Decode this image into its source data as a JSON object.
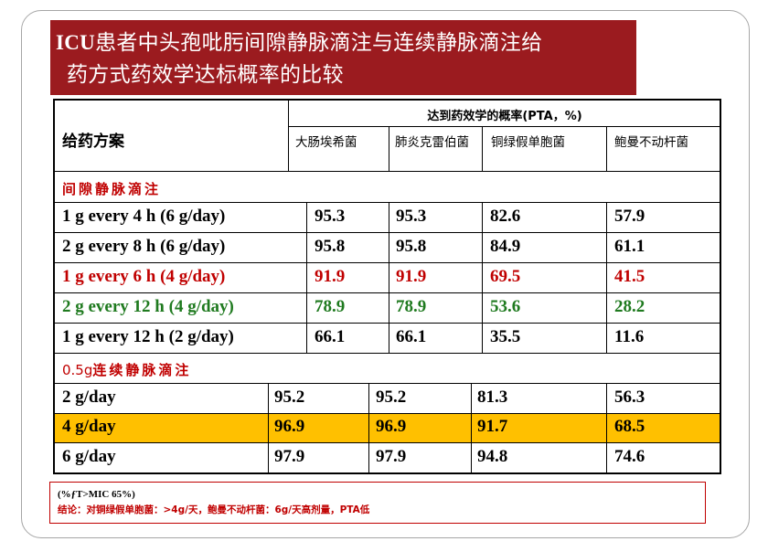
{
  "title": {
    "prefix": "ICU",
    "line1_rest": "患者中头孢吡肟间隙静脉滴注与连续静脉滴注给",
    "line2": "药方式药效学达标概率的比较"
  },
  "table": {
    "plan_header": "给药方案",
    "pta_header": "达到药效学的概率(PTA，%)",
    "organisms": [
      "大肠埃希菌",
      "肺炎克雷伯菌",
      "铜绿假单胞菌",
      "鲍曼不动杆菌"
    ],
    "section_intermittent": "间隙静脉滴注",
    "section_continuous_prefix": "0.5g",
    "section_continuous_rest": "连续静脉滴注",
    "intermittent_rows": [
      {
        "regimen": "1 g every 4 h (6 g/day)",
        "values": [
          "95.3",
          "95.3",
          "82.6",
          "57.9"
        ],
        "color": "black"
      },
      {
        "regimen": "2 g every 8 h (6 g/day)",
        "values": [
          "95.8",
          "95.8",
          "84.9",
          "61.1"
        ],
        "color": "black"
      },
      {
        "regimen": "1 g every 6 h (4 g/day)",
        "values": [
          "91.9",
          "91.9",
          "69.5",
          "41.5"
        ],
        "color": "red"
      },
      {
        "regimen": "2 g every  12 h (4 g/day)",
        "values": [
          "78.9",
          "78.9",
          "53.6",
          "28.2"
        ],
        "color": "green"
      },
      {
        "regimen": "1 g every  12 h (2 g/day)",
        "values": [
          "66.1",
          "66.1",
          "35.5",
          "11.6"
        ],
        "color": "black"
      }
    ],
    "continuous_rows": [
      {
        "regimen": "2 g/day",
        "values": [
          "95.2",
          "95.2",
          "81.3",
          "56.3"
        ],
        "highlight": false
      },
      {
        "regimen": "4 g/day",
        "values": [
          "96.9",
          "96.9",
          "91.7",
          "68.5"
        ],
        "highlight": true
      },
      {
        "regimen": "6 g/day",
        "values": [
          "97.9",
          "97.9",
          "94.8",
          "74.6"
        ],
        "highlight": false
      }
    ]
  },
  "note": {
    "line1": "(%ƒT>MIC 65%)",
    "line2": "结论：对铜绿假单胞菌：>4g/天，鲍曼不动杆菌：6g/天高剂量，PTA低"
  },
  "colors": {
    "title_bg": "#9b1b1f",
    "red_text": "#c00000",
    "green_text": "#1f7a1f",
    "highlight_row": "#ffc000"
  }
}
